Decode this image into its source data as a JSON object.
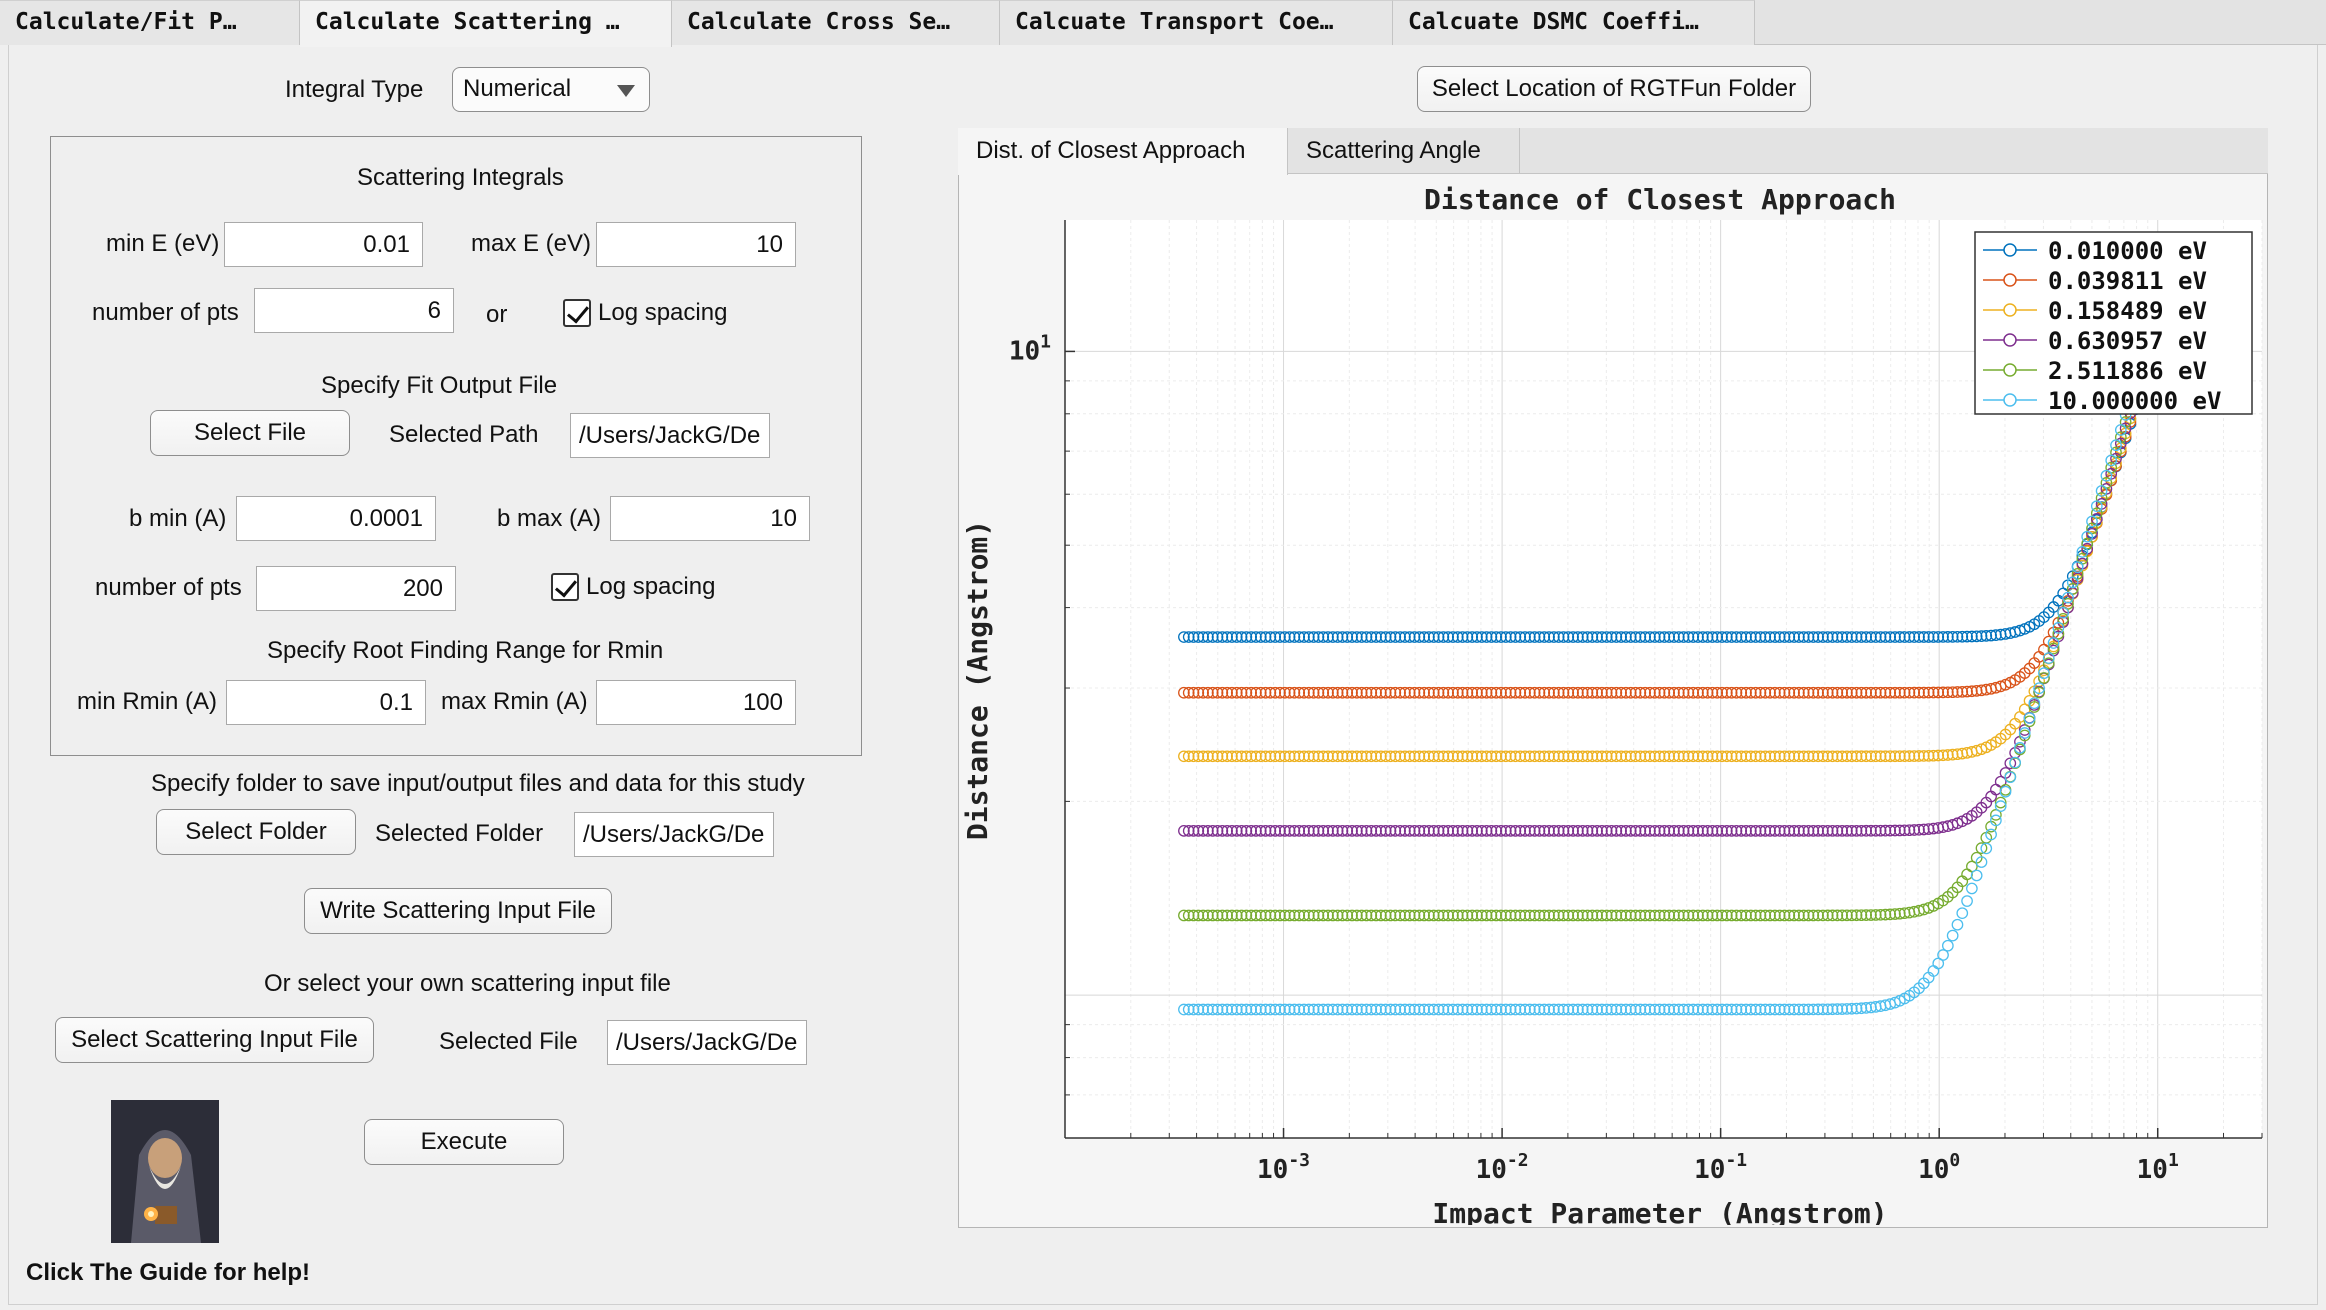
{
  "tabs": [
    {
      "label": "Calculate/Fit P…"
    },
    {
      "label": "Calculate Scattering …"
    },
    {
      "label": "Calculate Cross Se…"
    },
    {
      "label": "Calcuate Transport Coe…"
    },
    {
      "label": "Calcuate DSMC Coeffi…"
    }
  ],
  "integral_type": {
    "label": "Integral Type",
    "value": "Numerical"
  },
  "rgt_button": "Select Location of RGTFun Folder",
  "scattering_panel": {
    "title": "Scattering Integrals",
    "min_e_label": "min E (eV)",
    "min_e": "0.01",
    "max_e_label": "max E (eV)",
    "max_e": "10",
    "npts_label": "number of pts",
    "npts": "6",
    "or_label": "or",
    "log_spacing_label": "Log spacing",
    "log_spacing_checked": true,
    "fit_output_title": "Specify Fit Output File",
    "select_file": "Select File",
    "selected_path_label": "Selected Path",
    "selected_path": "/Users/JackG/De",
    "bmin_label": "b min (A)",
    "bmin": "0.0001",
    "bmax_label": "b max (A)",
    "bmax": "10",
    "npts2_label": "number of pts",
    "npts2": "200",
    "log_spacing2_label": "Log spacing",
    "log_spacing2_checked": true,
    "root_title": "Specify Root Finding Range for Rmin",
    "min_rmin_label": "min Rmin (A)",
    "min_rmin": "0.1",
    "max_rmin_label": "max Rmin (A)",
    "max_rmin": "100"
  },
  "folder_section": {
    "title": "Specify folder to save input/output files and data for this study",
    "select_folder": "Select Folder",
    "selected_folder_label": "Selected Folder",
    "selected_folder": "/Users/JackG/De"
  },
  "write_button": "Write Scattering Input File",
  "own_input": {
    "title": "Or select your own scattering input file",
    "button": "Select Scattering Input File",
    "selected_file_label": "Selected File",
    "selected_file": "/Users/JackG/De"
  },
  "execute": "Execute",
  "guide_text": "Click The Guide for help!",
  "plot_tabs": [
    {
      "label": "Dist. of Closest Approach"
    },
    {
      "label": "Scattering Angle"
    }
  ],
  "colors": {
    "c1": "#0072BD",
    "c2": "#D95319",
    "c3": "#EDB120",
    "c4": "#7E2F8E",
    "c5": "#77AC30",
    "c6": "#4DBEEE"
  },
  "chart_data": {
    "type": "line",
    "title": "Distance of Closest Approach",
    "xlabel": "Impact Parameter (Angstrom)",
    "ylabel": "Distance (Angstrom)",
    "xscale": "log",
    "yscale": "log",
    "xlim": [
      0.0001,
      30
    ],
    "ylim": [
      0.6,
      16
    ],
    "x_ticks": [
      "10^-3",
      "10^-2",
      "10^-1",
      "10^0",
      "10^1"
    ],
    "y_ticks": [
      "10^1"
    ],
    "grid": true,
    "legend_position": "top-right",
    "marker": "circle",
    "series": [
      {
        "name": "0.010000 eV",
        "color": "#0072BD",
        "plateau": 3.6
      },
      {
        "name": "0.039811 eV",
        "color": "#D95319",
        "plateau": 2.95
      },
      {
        "name": "0.158489 eV",
        "color": "#EDB120",
        "plateau": 2.35
      },
      {
        "name": "0.630957 eV",
        "color": "#7E2F8E",
        "plateau": 1.8
      },
      {
        "name": "2.511886 eV",
        "color": "#77AC30",
        "plateau": 1.33
      },
      {
        "name": "10.000000 eV",
        "color": "#4DBEEE",
        "plateau": 0.95
      }
    ]
  }
}
